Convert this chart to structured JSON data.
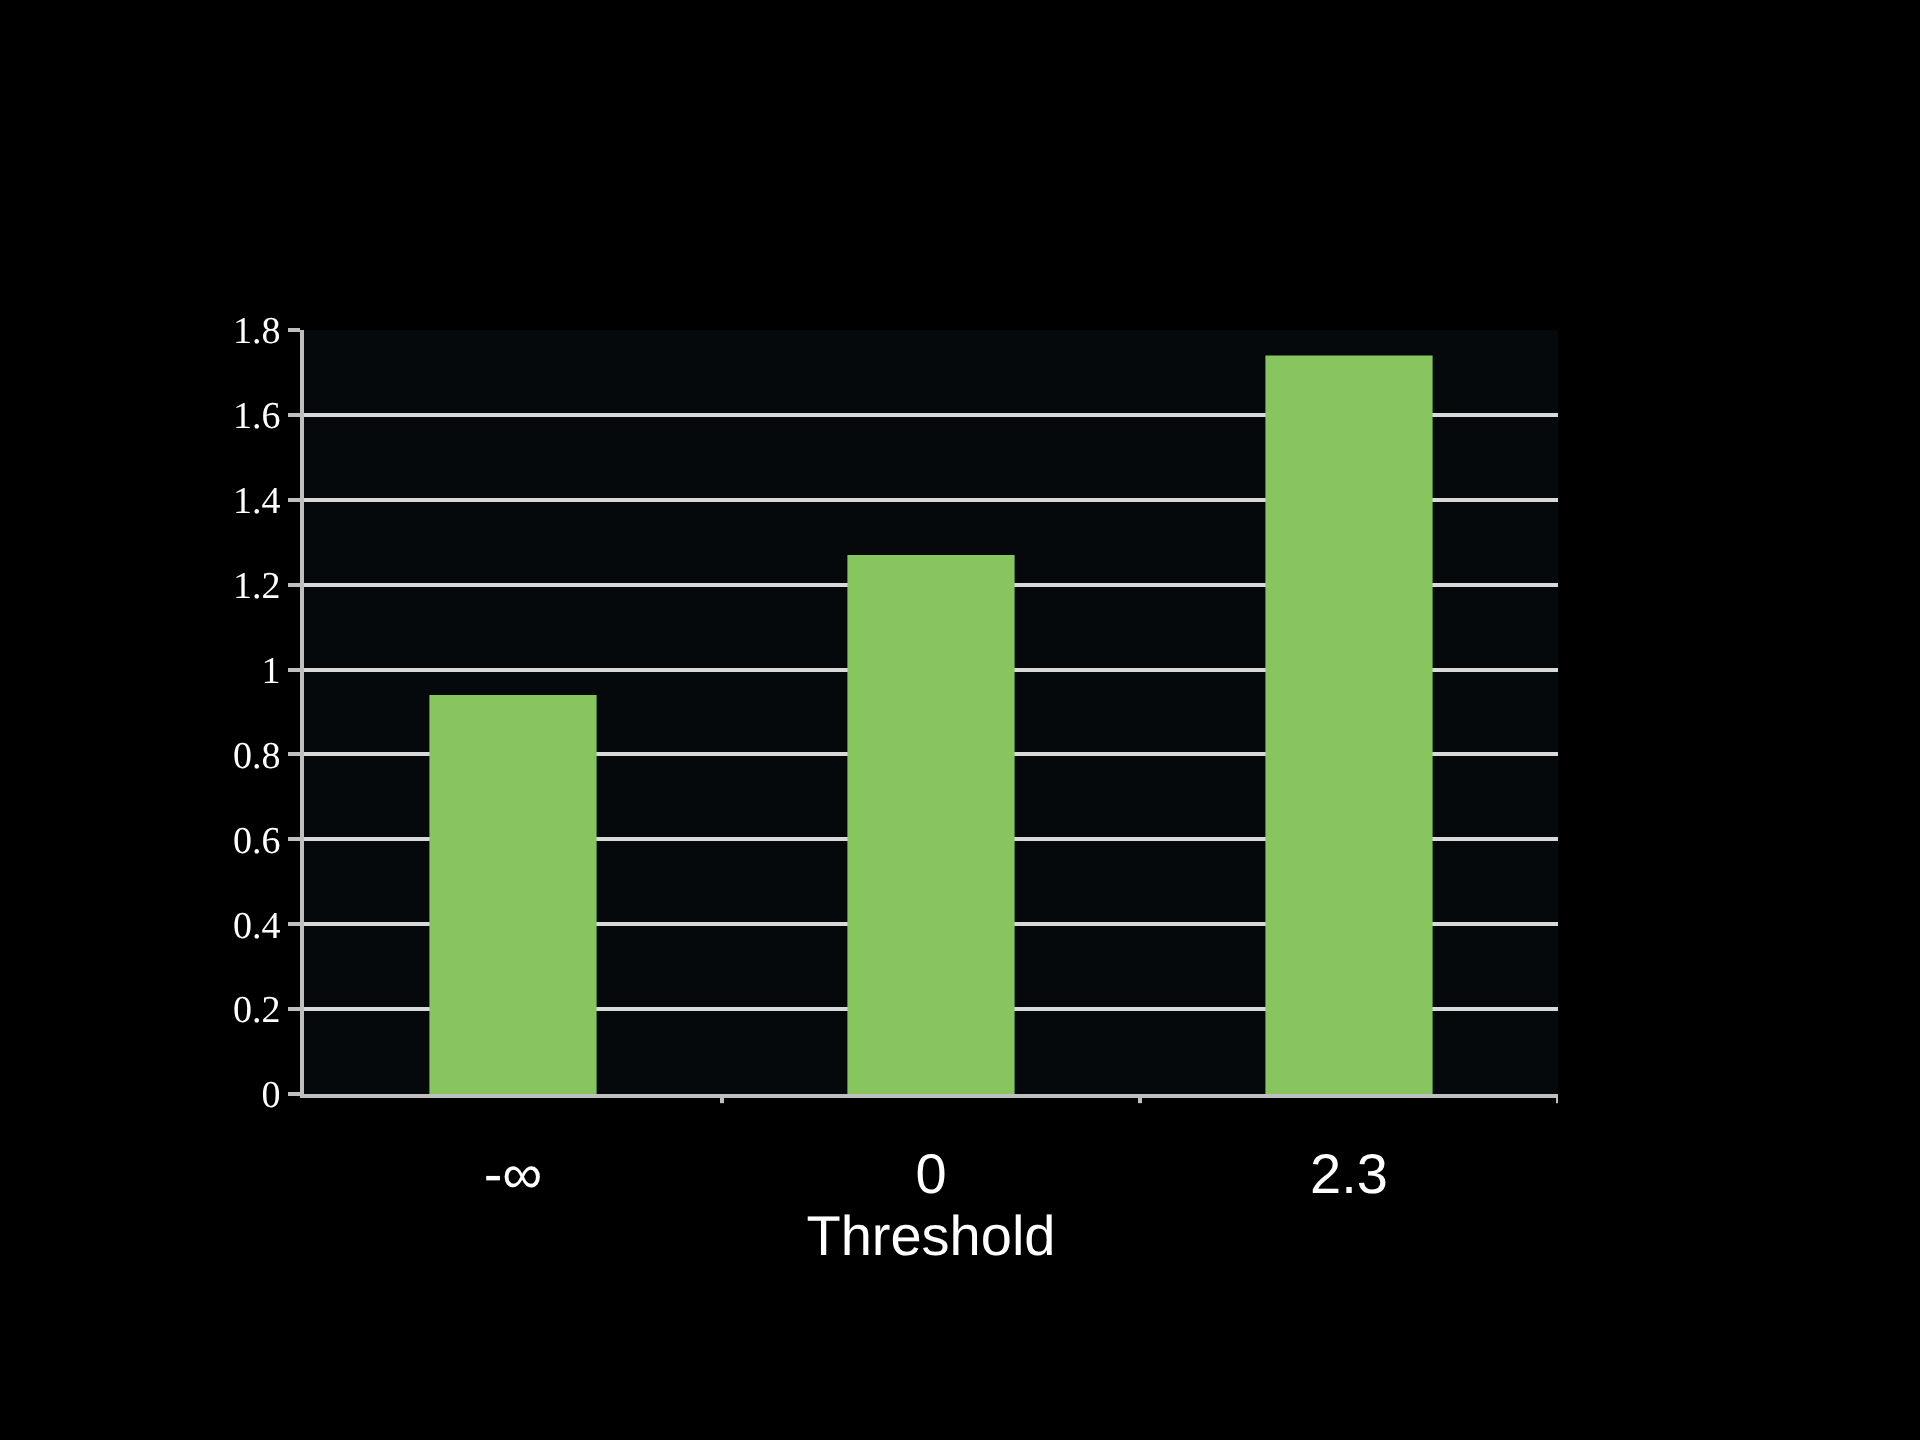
{
  "chart_data": {
    "type": "bar",
    "xlabel": "Threshold",
    "categories": [
      "-∞",
      "0",
      "2.3"
    ],
    "values": [
      0.94,
      1.27,
      1.74
    ],
    "color": "#87c55f",
    "ylim": [
      0,
      1.8
    ],
    "yticks": [
      0,
      0.2,
      0.4,
      0.6,
      0.8,
      1,
      1.2,
      1.4,
      1.6,
      1.8
    ],
    "grid": "y"
  }
}
